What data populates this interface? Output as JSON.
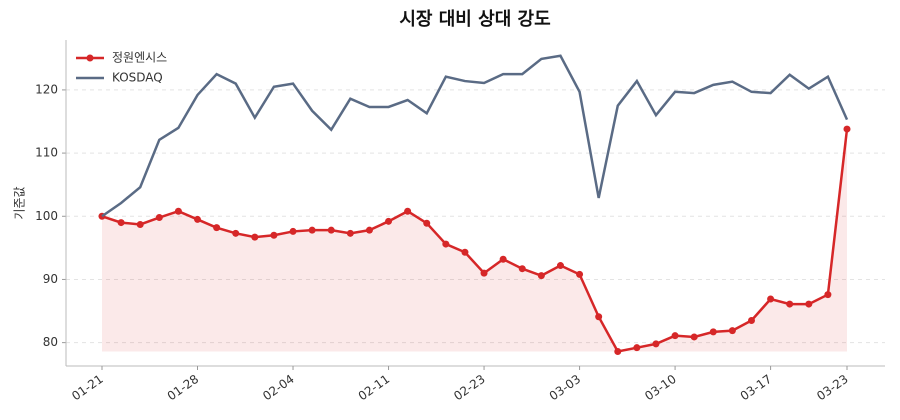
{
  "chart_data": {
    "type": "line",
    "title": "시장 대비 상대 강도",
    "y_label": "기준값",
    "categories": [
      "01-21",
      null,
      null,
      null,
      null,
      "01-28",
      null,
      null,
      null,
      null,
      "02-04",
      null,
      null,
      null,
      null,
      "02-11",
      null,
      null,
      null,
      null,
      "02-23",
      null,
      null,
      null,
      null,
      "03-03",
      null,
      null,
      null,
      null,
      "03-10",
      null,
      null,
      null,
      null,
      "03-17",
      null,
      null,
      null,
      "03-23"
    ],
    "series": [
      {
        "name": "정원엔시스",
        "color": "#d62728",
        "fill": true,
        "markers": true,
        "values": [
          100,
          99.0,
          98.7,
          99.8,
          100.8,
          99.5,
          98.2,
          97.3,
          96.7,
          97.0,
          97.6,
          97.8,
          97.8,
          97.3,
          97.8,
          99.2,
          100.8,
          98.9,
          95.6,
          94.3,
          91.0,
          93.2,
          91.7,
          90.6,
          92.2,
          90.8,
          84.1,
          78.6,
          79.2,
          79.8,
          81.1,
          80.9,
          81.7,
          81.9,
          83.5,
          86.9,
          86.1,
          86.1,
          87.6,
          113.8
        ]
      },
      {
        "name": "KOSDAQ",
        "color": "#5a6b85",
        "fill": false,
        "markers": false,
        "values": [
          100,
          102.1,
          104.6,
          112.1,
          114.0,
          119.2,
          122.5,
          121.0,
          115.6,
          120.5,
          121.0,
          116.7,
          113.7,
          118.6,
          117.3,
          117.3,
          118.4,
          116.3,
          122.1,
          121.4,
          121.1,
          122.5,
          122.5,
          124.9,
          125.4,
          119.7,
          102.9,
          117.5,
          121.4,
          116.0,
          119.7,
          119.5,
          120.8,
          121.3,
          119.7,
          119.5,
          122.4,
          120.2,
          122.1,
          115.3
        ]
      }
    ],
    "ylim": [
      76.3,
      127.9
    ],
    "yticks": [
      80,
      90,
      100,
      110,
      120
    ],
    "grid": true,
    "legend": "upper left"
  }
}
